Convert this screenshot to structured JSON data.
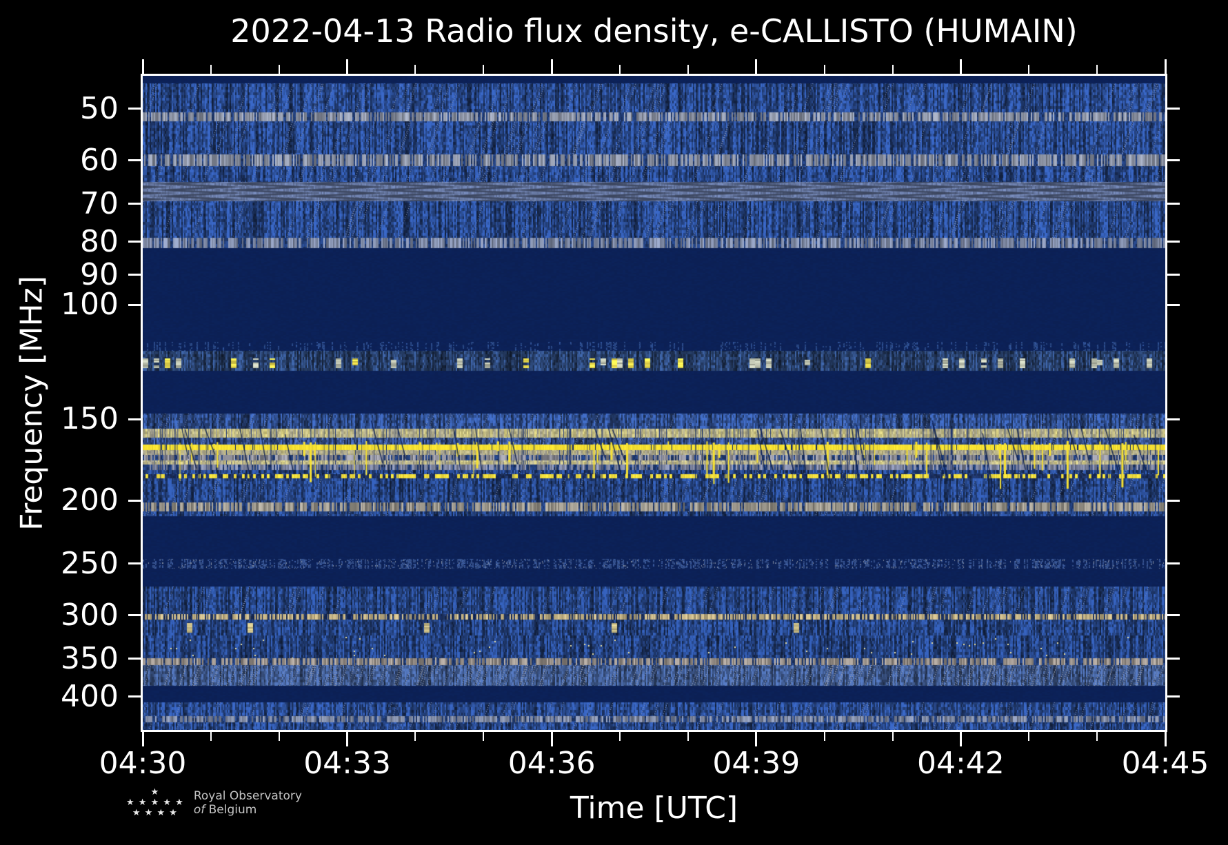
{
  "chart_data": {
    "type": "heatmap",
    "title": "2022-04-13 Radio flux density, e-CALLISTO (HUMAIN)",
    "xlabel": "Time [UTC]",
    "ylabel": "Frequency [MHz]",
    "x_ticks": [
      {
        "label": "04:30",
        "minute": 0
      },
      {
        "label": "04:33",
        "minute": 3
      },
      {
        "label": "04:36",
        "minute": 6
      },
      {
        "label": "04:39",
        "minute": 9
      },
      {
        "label": "04:42",
        "minute": 12
      },
      {
        "label": "04:45",
        "minute": 15
      }
    ],
    "x_total_minutes": 15,
    "x_minor_step_minutes": 1,
    "y_ticks": [
      50,
      60,
      70,
      80,
      90,
      100,
      150,
      200,
      250,
      300,
      350,
      400
    ],
    "y_scale": "log",
    "y_range_mhz": [
      44.5,
      450
    ],
    "y_axis_inverted_low_at_top": true,
    "grid": false,
    "legend": "none",
    "palette": {
      "background_dark": "#0c2157",
      "noise_blue": "#24417d",
      "bright_yellow": "#f8e232",
      "pale_yellow": "#d5cc7c",
      "band_gray": "#8f8f99",
      "tan": "#b9a97e",
      "speckle_pale": "#e3dca4",
      "axis_white": "#ffffff"
    },
    "bands": [
      {
        "f0": 44.5,
        "f1": 45.7,
        "style": "flat",
        "c": "#0c2157"
      },
      {
        "f0": 45.7,
        "f1": 50.6,
        "style": "noise",
        "c": "#24417d"
      },
      {
        "f0": 50.6,
        "f1": 52.3,
        "style": "gray",
        "c": "#8d94a5"
      },
      {
        "f0": 52.3,
        "f1": 58.7,
        "style": "noise",
        "c": "#24417d"
      },
      {
        "f0": 58.7,
        "f1": 61.2,
        "style": "gray",
        "c": "#8a91a2"
      },
      {
        "f0": 61.2,
        "f1": 64.8,
        "style": "noise",
        "c": "#24417d"
      },
      {
        "f0": 64.8,
        "f1": 69.3,
        "style": "wavy",
        "c": "#5f6f96"
      },
      {
        "f0": 69.3,
        "f1": 78.9,
        "style": "noise",
        "c": "#24417d"
      },
      {
        "f0": 78.9,
        "f1": 81.8,
        "style": "gray",
        "c": "#7e89a4"
      },
      {
        "f0": 81.8,
        "f1": 114.0,
        "style": "flat",
        "c": "#0c2157"
      },
      {
        "f0": 114.0,
        "f1": 117.6,
        "style": "sparse",
        "c": "#0c2157"
      },
      {
        "f0": 117.6,
        "f1": 126.4,
        "style": "speckle",
        "c": "#2e4a7c"
      },
      {
        "f0": 126.4,
        "f1": 147.0,
        "style": "flat",
        "c": "#0c2157"
      },
      {
        "f0": 147.0,
        "f1": 155.0,
        "style": "noise",
        "c": "#2a4680"
      },
      {
        "f0": 155.0,
        "f1": 160.0,
        "style": "pyellow",
        "c": "#d5cc7c"
      },
      {
        "f0": 160.0,
        "f1": 163.9,
        "style": "noise",
        "c": "#31497f"
      },
      {
        "f0": 163.9,
        "f1": 167.1,
        "style": "bright",
        "c": "#f8e232"
      },
      {
        "f0": 167.1,
        "f1": 170.0,
        "style": "pyellow",
        "c": "#c2ba82"
      },
      {
        "f0": 170.0,
        "f1": 173.3,
        "style": "gray",
        "c": "#8f8f99"
      },
      {
        "f0": 173.3,
        "f1": 176.2,
        "style": "pyellow",
        "c": "#d7ce86"
      },
      {
        "f0": 176.2,
        "f1": 179.3,
        "style": "gray",
        "c": "#7e85a0"
      },
      {
        "f0": 179.3,
        "f1": 182.3,
        "style": "noise",
        "c": "#223e78"
      },
      {
        "f0": 182.3,
        "f1": 185.0,
        "style": "dash",
        "c": "#f2de3e"
      },
      {
        "f0": 185.0,
        "f1": 201.4,
        "style": "noise",
        "c": "#223e78"
      },
      {
        "f0": 201.4,
        "f1": 207.8,
        "style": "gray",
        "c": "#9a958a"
      },
      {
        "f0": 207.8,
        "f1": 211.4,
        "style": "noise",
        "c": "#223e78"
      },
      {
        "f0": 211.4,
        "f1": 245.8,
        "style": "flat",
        "c": "#0c2157"
      },
      {
        "f0": 245.8,
        "f1": 254.3,
        "style": "sparse2",
        "c": "#2a4377"
      },
      {
        "f0": 254.3,
        "f1": 270.8,
        "style": "flat",
        "c": "#0c2157"
      },
      {
        "f0": 270.8,
        "f1": 298.7,
        "style": "noise",
        "c": "#223e78"
      },
      {
        "f0": 298.7,
        "f1": 304.5,
        "style": "tandash",
        "c": "#b9a97e"
      },
      {
        "f0": 304.5,
        "f1": 322.4,
        "style": "blobnoise",
        "c": "#223e78"
      },
      {
        "f0": 322.4,
        "f1": 349.6,
        "style": "dotnoise",
        "c": "#223e78"
      },
      {
        "f0": 349.6,
        "f1": 358.1,
        "style": "gray",
        "c": "#99918a"
      },
      {
        "f0": 358.1,
        "f1": 385.3,
        "style": "noiselight",
        "c": "#3a5384"
      },
      {
        "f0": 385.3,
        "f1": 408.3,
        "style": "flat",
        "c": "#0c2157"
      },
      {
        "f0": 408.3,
        "f1": 429.0,
        "style": "noise",
        "c": "#24417d"
      },
      {
        "f0": 429.0,
        "f1": 438.0,
        "style": "gray",
        "c": "#7d87a0"
      },
      {
        "f0": 438.0,
        "f1": 450.0,
        "style": "noise",
        "c": "#24417d"
      }
    ],
    "overlays": {
      "yellow_spikes": {
        "count": 55,
        "f_top": 162,
        "f_base": 164,
        "f_max": 190,
        "color": "#f6e134"
      },
      "dropout_lines": {
        "count": 70,
        "f0": 155,
        "f1": 186,
        "color": "#102864"
      },
      "diagonal_scratches": {
        "count": 30,
        "f0": 150,
        "f1": 205,
        "color": "#0a1e50"
      }
    }
  },
  "credit": {
    "star_rows": [
      "★",
      "★ ★ ★ ★ ★",
      "★ ★ ★ ★"
    ],
    "line1": "Royal Observatory",
    "line2_italic": "of",
    "line2_rest": "Belgium"
  }
}
